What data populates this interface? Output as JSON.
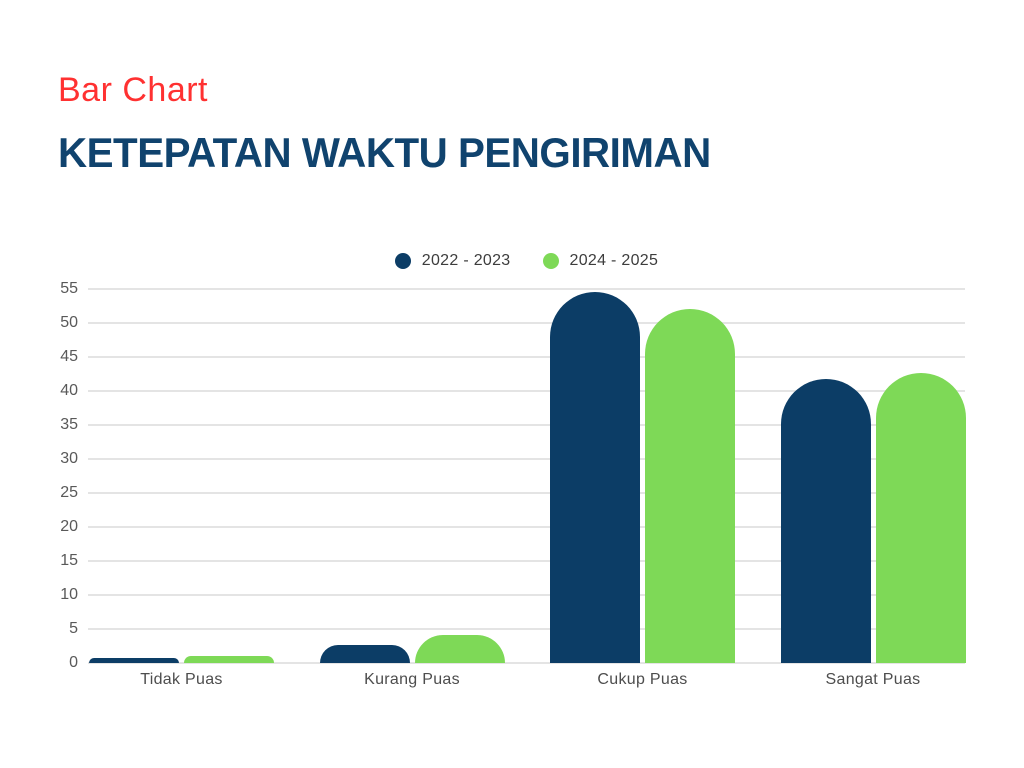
{
  "header": {
    "label": "Bar Chart",
    "title": "KETEPATAN WAKTU PENGIRIMAN"
  },
  "colors": {
    "accent_red": "#ff3131",
    "heading_navy": "#10436e",
    "navy": "#0c3d66",
    "green": "#7ed957",
    "grid": "#e4e4e4",
    "tick_text": "#595959",
    "category_text": "#4d4d4d",
    "legend_text": "#3d3d3d",
    "bg": "#ffffff"
  },
  "chart_data": {
    "type": "bar",
    "title": "KETEPATAN WAKTU PENGIRIMAN",
    "categories": [
      "Tidak Puas",
      "Kurang Puas",
      "Cukup Puas",
      "Sangat Puas"
    ],
    "series": [
      {
        "name": "2022 - 2023",
        "color": "#0c3d66",
        "values": [
          0.8,
          2.6,
          54.5,
          41.8
        ]
      },
      {
        "name": "2024 - 2025",
        "color": "#7ed957",
        "values": [
          1.1,
          4.1,
          52.0,
          42.6
        ]
      }
    ],
    "xlabel": "",
    "ylabel": "",
    "ylim": [
      0,
      55
    ],
    "yticks": [
      0,
      5,
      10,
      15,
      20,
      25,
      30,
      35,
      40,
      45,
      50,
      55
    ],
    "grid": "horizontal",
    "legend_position": "top-center",
    "bar_style": "rounded-top"
  }
}
